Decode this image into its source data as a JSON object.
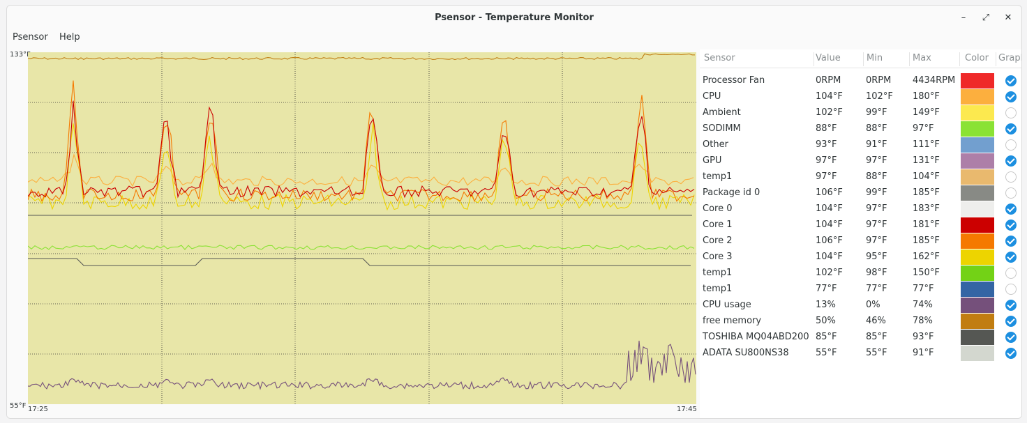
{
  "window": {
    "title": "Psensor - Temperature Monitor",
    "controls": {
      "minimize": "–",
      "maximize": "⤢",
      "close": "✕"
    }
  },
  "menu": [
    "Psensor",
    "Help"
  ],
  "graph": {
    "y_max_label": "133°F",
    "y_min_label": "55°F",
    "x_start_label": "17:25",
    "x_end_label": "17:45",
    "background": "#e8e6a8"
  },
  "table": {
    "headers": [
      "Sensor",
      "Value",
      "Min",
      "Max",
      "Color",
      "Graph"
    ],
    "rows": [
      {
        "name": "Processor Fan",
        "value": "0RPM",
        "min": "0RPM",
        "max": "4434RPM",
        "color": "#ef2929",
        "graph": true
      },
      {
        "name": "CPU",
        "value": "104°F",
        "min": "102°F",
        "max": "180°F",
        "color": "#fcaf3e",
        "graph": true
      },
      {
        "name": "Ambient",
        "value": "102°F",
        "min": "99°F",
        "max": "149°F",
        "color": "#fce94f",
        "graph": false
      },
      {
        "name": "SODIMM",
        "value": "88°F",
        "min": "88°F",
        "max": "97°F",
        "color": "#8ae234",
        "graph": true
      },
      {
        "name": "Other",
        "value": "93°F",
        "min": "91°F",
        "max": "111°F",
        "color": "#729fcf",
        "graph": false
      },
      {
        "name": "GPU",
        "value": "97°F",
        "min": "97°F",
        "max": "131°F",
        "color": "#ad7fa8",
        "graph": true
      },
      {
        "name": "temp1",
        "value": "97°F",
        "min": "88°F",
        "max": "104°F",
        "color": "#e9b96e",
        "graph": false
      },
      {
        "name": "Package id 0",
        "value": "106°F",
        "min": "99°F",
        "max": "185°F",
        "color": "#888a85",
        "graph": false
      },
      {
        "name": "Core 0",
        "value": "104°F",
        "min": "97°F",
        "max": "183°F",
        "color": "#eeeeec",
        "graph": true
      },
      {
        "name": "Core 1",
        "value": "104°F",
        "min": "97°F",
        "max": "181°F",
        "color": "#cc0000",
        "graph": true
      },
      {
        "name": "Core 2",
        "value": "106°F",
        "min": "97°F",
        "max": "185°F",
        "color": "#f57900",
        "graph": true
      },
      {
        "name": "Core 3",
        "value": "104°F",
        "min": "95°F",
        "max": "162°F",
        "color": "#edd400",
        "graph": true
      },
      {
        "name": "temp1",
        "value": "102°F",
        "min": "98°F",
        "max": "150°F",
        "color": "#73d216",
        "graph": false
      },
      {
        "name": "temp1",
        "value": "77°F",
        "min": "77°F",
        "max": "77°F",
        "color": "#3465a4",
        "graph": false
      },
      {
        "name": "CPU usage",
        "value": "13%",
        "min": "0%",
        "max": "74%",
        "color": "#75507b",
        "graph": true
      },
      {
        "name": "free memory",
        "value": "50%",
        "min": "46%",
        "max": "78%",
        "color": "#c17d11",
        "graph": true
      },
      {
        "name": "TOSHIBA MQ04ABD200",
        "value": "85°F",
        "min": "85°F",
        "max": "93°F",
        "color": "#555753",
        "graph": true
      },
      {
        "name": "ADATA SU800NS38",
        "value": "55°F",
        "min": "55°F",
        "max": "91°F",
        "color": "#d3d7cf",
        "graph": true
      }
    ]
  }
}
